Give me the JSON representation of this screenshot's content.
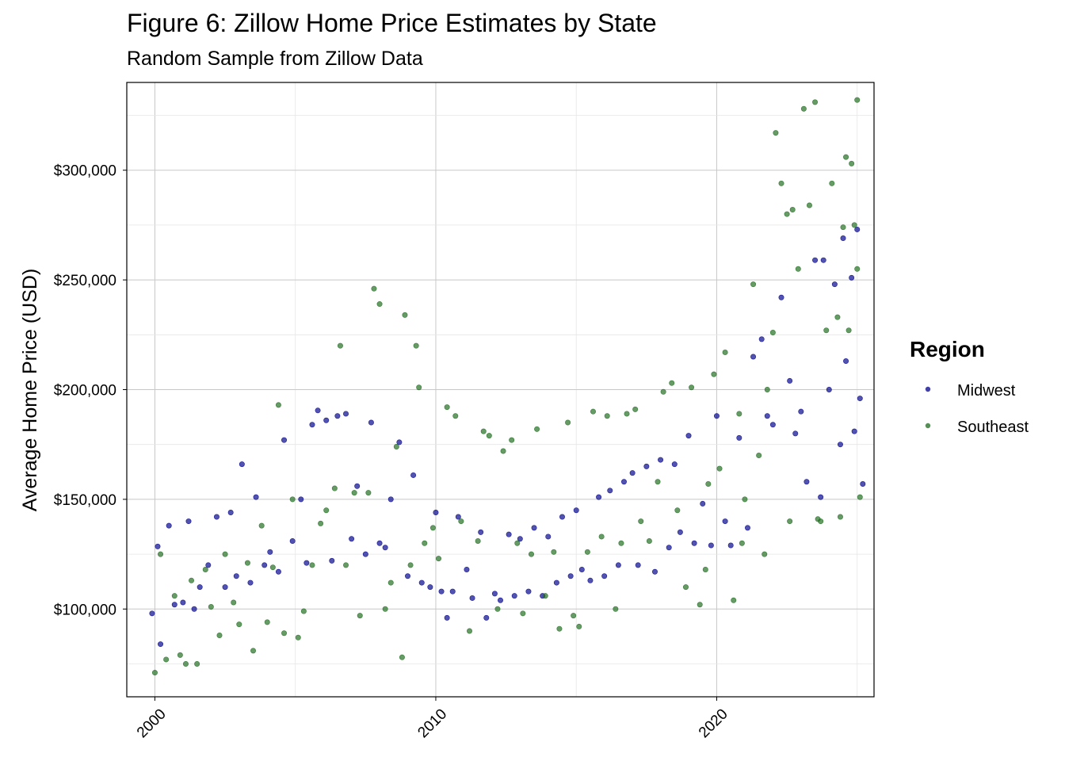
{
  "chart_data": {
    "type": "scatter",
    "title": "Figure 6: Zillow Home Price Estimates by State",
    "subtitle": "Random Sample from Zillow Data",
    "xlabel": "",
    "ylabel": "Average Home Price (USD)",
    "xlim": [
      1999.0,
      2025.6
    ],
    "ylim": [
      60000,
      340000
    ],
    "x_ticks": [
      2000,
      2010,
      2020
    ],
    "x_tick_labels": [
      "2000",
      "2010",
      "2020"
    ],
    "y_ticks": [
      100000,
      150000,
      200000,
      250000,
      300000
    ],
    "y_tick_labels": [
      "$100,000",
      "$150,000",
      "$200,000",
      "$250,000",
      "$300,000"
    ],
    "grid": true,
    "legend": {
      "title": "Region",
      "position": "right"
    },
    "series": [
      {
        "name": "Midwest",
        "color": "#00008B",
        "points": [
          [
            1999.9,
            98000
          ],
          [
            2000.1,
            128500
          ],
          [
            2000.2,
            84000
          ],
          [
            2000.5,
            138000
          ],
          [
            2000.7,
            102000
          ],
          [
            2001.0,
            103000
          ],
          [
            2001.2,
            140000
          ],
          [
            2001.4,
            100000
          ],
          [
            2001.6,
            110000
          ],
          [
            2001.9,
            120000
          ],
          [
            2002.2,
            142000
          ],
          [
            2002.5,
            110000
          ],
          [
            2002.7,
            144000
          ],
          [
            2002.9,
            115000
          ],
          [
            2003.1,
            166000
          ],
          [
            2003.4,
            112000
          ],
          [
            2003.6,
            151000
          ],
          [
            2003.9,
            120000
          ],
          [
            2004.1,
            126000
          ],
          [
            2004.4,
            117000
          ],
          [
            2004.6,
            177000
          ],
          [
            2004.9,
            131000
          ],
          [
            2005.2,
            150000
          ],
          [
            2005.4,
            121000
          ],
          [
            2005.6,
            184000
          ],
          [
            2005.8,
            190500
          ],
          [
            2006.1,
            186000
          ],
          [
            2006.3,
            122000
          ],
          [
            2006.5,
            188000
          ],
          [
            2006.8,
            189000
          ],
          [
            2007.0,
            132000
          ],
          [
            2007.2,
            156000
          ],
          [
            2007.5,
            125000
          ],
          [
            2007.7,
            185000
          ],
          [
            2008.0,
            130000
          ],
          [
            2008.2,
            128000
          ],
          [
            2008.4,
            150000
          ],
          [
            2008.7,
            176000
          ],
          [
            2009.0,
            115000
          ],
          [
            2009.2,
            161000
          ],
          [
            2009.5,
            112000
          ],
          [
            2009.8,
            110000
          ],
          [
            2010.0,
            144000
          ],
          [
            2010.2,
            108000
          ],
          [
            2010.4,
            96000
          ],
          [
            2010.6,
            108000
          ],
          [
            2010.8,
            142000
          ],
          [
            2011.1,
            118000
          ],
          [
            2011.3,
            105000
          ],
          [
            2011.6,
            135000
          ],
          [
            2011.8,
            96000
          ],
          [
            2012.1,
            107000
          ],
          [
            2012.3,
            104000
          ],
          [
            2012.6,
            134000
          ],
          [
            2012.8,
            106000
          ],
          [
            2013.0,
            132000
          ],
          [
            2013.3,
            108000
          ],
          [
            2013.5,
            137000
          ],
          [
            2013.8,
            106000
          ],
          [
            2014.0,
            133000
          ],
          [
            2014.3,
            112000
          ],
          [
            2014.5,
            142000
          ],
          [
            2014.8,
            115000
          ],
          [
            2015.0,
            145000
          ],
          [
            2015.2,
            118000
          ],
          [
            2015.5,
            113000
          ],
          [
            2015.8,
            151000
          ],
          [
            2016.0,
            115000
          ],
          [
            2016.2,
            154000
          ],
          [
            2016.5,
            120000
          ],
          [
            2016.7,
            158000
          ],
          [
            2017.0,
            162000
          ],
          [
            2017.2,
            120000
          ],
          [
            2017.5,
            165000
          ],
          [
            2017.8,
            117000
          ],
          [
            2018.0,
            168000
          ],
          [
            2018.3,
            128000
          ],
          [
            2018.5,
            166000
          ],
          [
            2018.7,
            135000
          ],
          [
            2019.0,
            179000
          ],
          [
            2019.2,
            130000
          ],
          [
            2019.5,
            148000
          ],
          [
            2019.8,
            129000
          ],
          [
            2020.0,
            188000
          ],
          [
            2020.3,
            140000
          ],
          [
            2020.5,
            129000
          ],
          [
            2020.8,
            178000
          ],
          [
            2021.1,
            137000
          ],
          [
            2021.3,
            215000
          ],
          [
            2021.6,
            223000
          ],
          [
            2021.8,
            188000
          ],
          [
            2022.0,
            184000
          ],
          [
            2022.3,
            242000
          ],
          [
            2022.6,
            204000
          ],
          [
            2022.8,
            180000
          ],
          [
            2023.0,
            190000
          ],
          [
            2023.2,
            158000
          ],
          [
            2023.5,
            259000
          ],
          [
            2023.8,
            259000
          ],
          [
            2024.0,
            200000
          ],
          [
            2024.2,
            248000
          ],
          [
            2024.5,
            269000
          ],
          [
            2024.6,
            213000
          ],
          [
            2024.8,
            251000
          ],
          [
            2025.0,
            273000
          ],
          [
            2025.1,
            196000
          ],
          [
            2025.2,
            157000
          ],
          [
            2024.9,
            181000
          ],
          [
            2024.4,
            175000
          ],
          [
            2023.7,
            151000
          ]
        ]
      },
      {
        "name": "Southeast",
        "color": "#1E6B1E",
        "points": [
          [
            2000.0,
            71000
          ],
          [
            2000.2,
            125000
          ],
          [
            2000.4,
            77000
          ],
          [
            2000.7,
            106000
          ],
          [
            2000.9,
            79000
          ],
          [
            2001.1,
            75000
          ],
          [
            2001.3,
            113000
          ],
          [
            2001.5,
            75000
          ],
          [
            2001.8,
            118000
          ],
          [
            2002.0,
            101000
          ],
          [
            2002.3,
            88000
          ],
          [
            2002.5,
            125000
          ],
          [
            2002.8,
            103000
          ],
          [
            2003.0,
            93000
          ],
          [
            2003.3,
            121000
          ],
          [
            2003.5,
            81000
          ],
          [
            2003.8,
            138000
          ],
          [
            2004.0,
            94000
          ],
          [
            2004.2,
            119000
          ],
          [
            2004.4,
            193000
          ],
          [
            2004.6,
            89000
          ],
          [
            2004.9,
            150000
          ],
          [
            2005.1,
            87000
          ],
          [
            2005.3,
            99000
          ],
          [
            2005.6,
            120000
          ],
          [
            2005.9,
            139000
          ],
          [
            2006.1,
            145000
          ],
          [
            2006.4,
            155000
          ],
          [
            2006.6,
            220000
          ],
          [
            2006.8,
            120000
          ],
          [
            2007.1,
            153000
          ],
          [
            2007.3,
            97000
          ],
          [
            2007.6,
            153000
          ],
          [
            2007.8,
            246000
          ],
          [
            2008.0,
            239000
          ],
          [
            2008.2,
            100000
          ],
          [
            2008.4,
            112000
          ],
          [
            2008.6,
            174000
          ],
          [
            2008.8,
            78000
          ],
          [
            2008.9,
            234000
          ],
          [
            2009.1,
            120000
          ],
          [
            2009.3,
            220000
          ],
          [
            2009.4,
            201000
          ],
          [
            2009.6,
            130000
          ],
          [
            2009.9,
            137000
          ],
          [
            2010.1,
            123000
          ],
          [
            2010.4,
            192000
          ],
          [
            2010.7,
            188000
          ],
          [
            2010.9,
            140000
          ],
          [
            2011.2,
            90000
          ],
          [
            2011.5,
            131000
          ],
          [
            2011.7,
            181000
          ],
          [
            2011.9,
            179000
          ],
          [
            2012.2,
            100000
          ],
          [
            2012.4,
            172000
          ],
          [
            2012.7,
            177000
          ],
          [
            2012.9,
            130000
          ],
          [
            2013.1,
            98000
          ],
          [
            2013.4,
            125000
          ],
          [
            2013.6,
            182000
          ],
          [
            2013.9,
            106000
          ],
          [
            2014.2,
            126000
          ],
          [
            2014.4,
            91000
          ],
          [
            2014.7,
            185000
          ],
          [
            2014.9,
            97000
          ],
          [
            2015.1,
            92000
          ],
          [
            2015.4,
            126000
          ],
          [
            2015.6,
            190000
          ],
          [
            2015.9,
            133000
          ],
          [
            2016.1,
            188000
          ],
          [
            2016.4,
            100000
          ],
          [
            2016.6,
            130000
          ],
          [
            2016.8,
            189000
          ],
          [
            2017.1,
            191000
          ],
          [
            2017.3,
            140000
          ],
          [
            2017.6,
            131000
          ],
          [
            2017.9,
            158000
          ],
          [
            2018.1,
            199000
          ],
          [
            2018.4,
            203000
          ],
          [
            2018.6,
            145000
          ],
          [
            2018.9,
            110000
          ],
          [
            2019.1,
            201000
          ],
          [
            2019.4,
            102000
          ],
          [
            2019.7,
            157000
          ],
          [
            2019.9,
            207000
          ],
          [
            2020.1,
            164000
          ],
          [
            2020.3,
            217000
          ],
          [
            2020.6,
            104000
          ],
          [
            2020.8,
            189000
          ],
          [
            2021.0,
            150000
          ],
          [
            2021.3,
            248000
          ],
          [
            2021.5,
            170000
          ],
          [
            2021.8,
            200000
          ],
          [
            2022.0,
            226000
          ],
          [
            2022.1,
            317000
          ],
          [
            2022.3,
            294000
          ],
          [
            2022.5,
            280000
          ],
          [
            2022.7,
            282000
          ],
          [
            2022.9,
            255000
          ],
          [
            2023.1,
            328000
          ],
          [
            2023.3,
            284000
          ],
          [
            2023.5,
            331000
          ],
          [
            2023.7,
            140000
          ],
          [
            2023.9,
            227000
          ],
          [
            2024.1,
            294000
          ],
          [
            2024.3,
            233000
          ],
          [
            2024.5,
            274000
          ],
          [
            2024.6,
            306000
          ],
          [
            2024.7,
            227000
          ],
          [
            2024.8,
            303000
          ],
          [
            2024.9,
            275000
          ],
          [
            2025.0,
            255000
          ],
          [
            2025.1,
            151000
          ],
          [
            2025.0,
            332000
          ],
          [
            2024.4,
            142000
          ],
          [
            2023.6,
            141000
          ],
          [
            2022.6,
            140000
          ],
          [
            2021.7,
            125000
          ],
          [
            2020.9,
            130000
          ],
          [
            2019.6,
            118000
          ]
        ]
      }
    ]
  }
}
